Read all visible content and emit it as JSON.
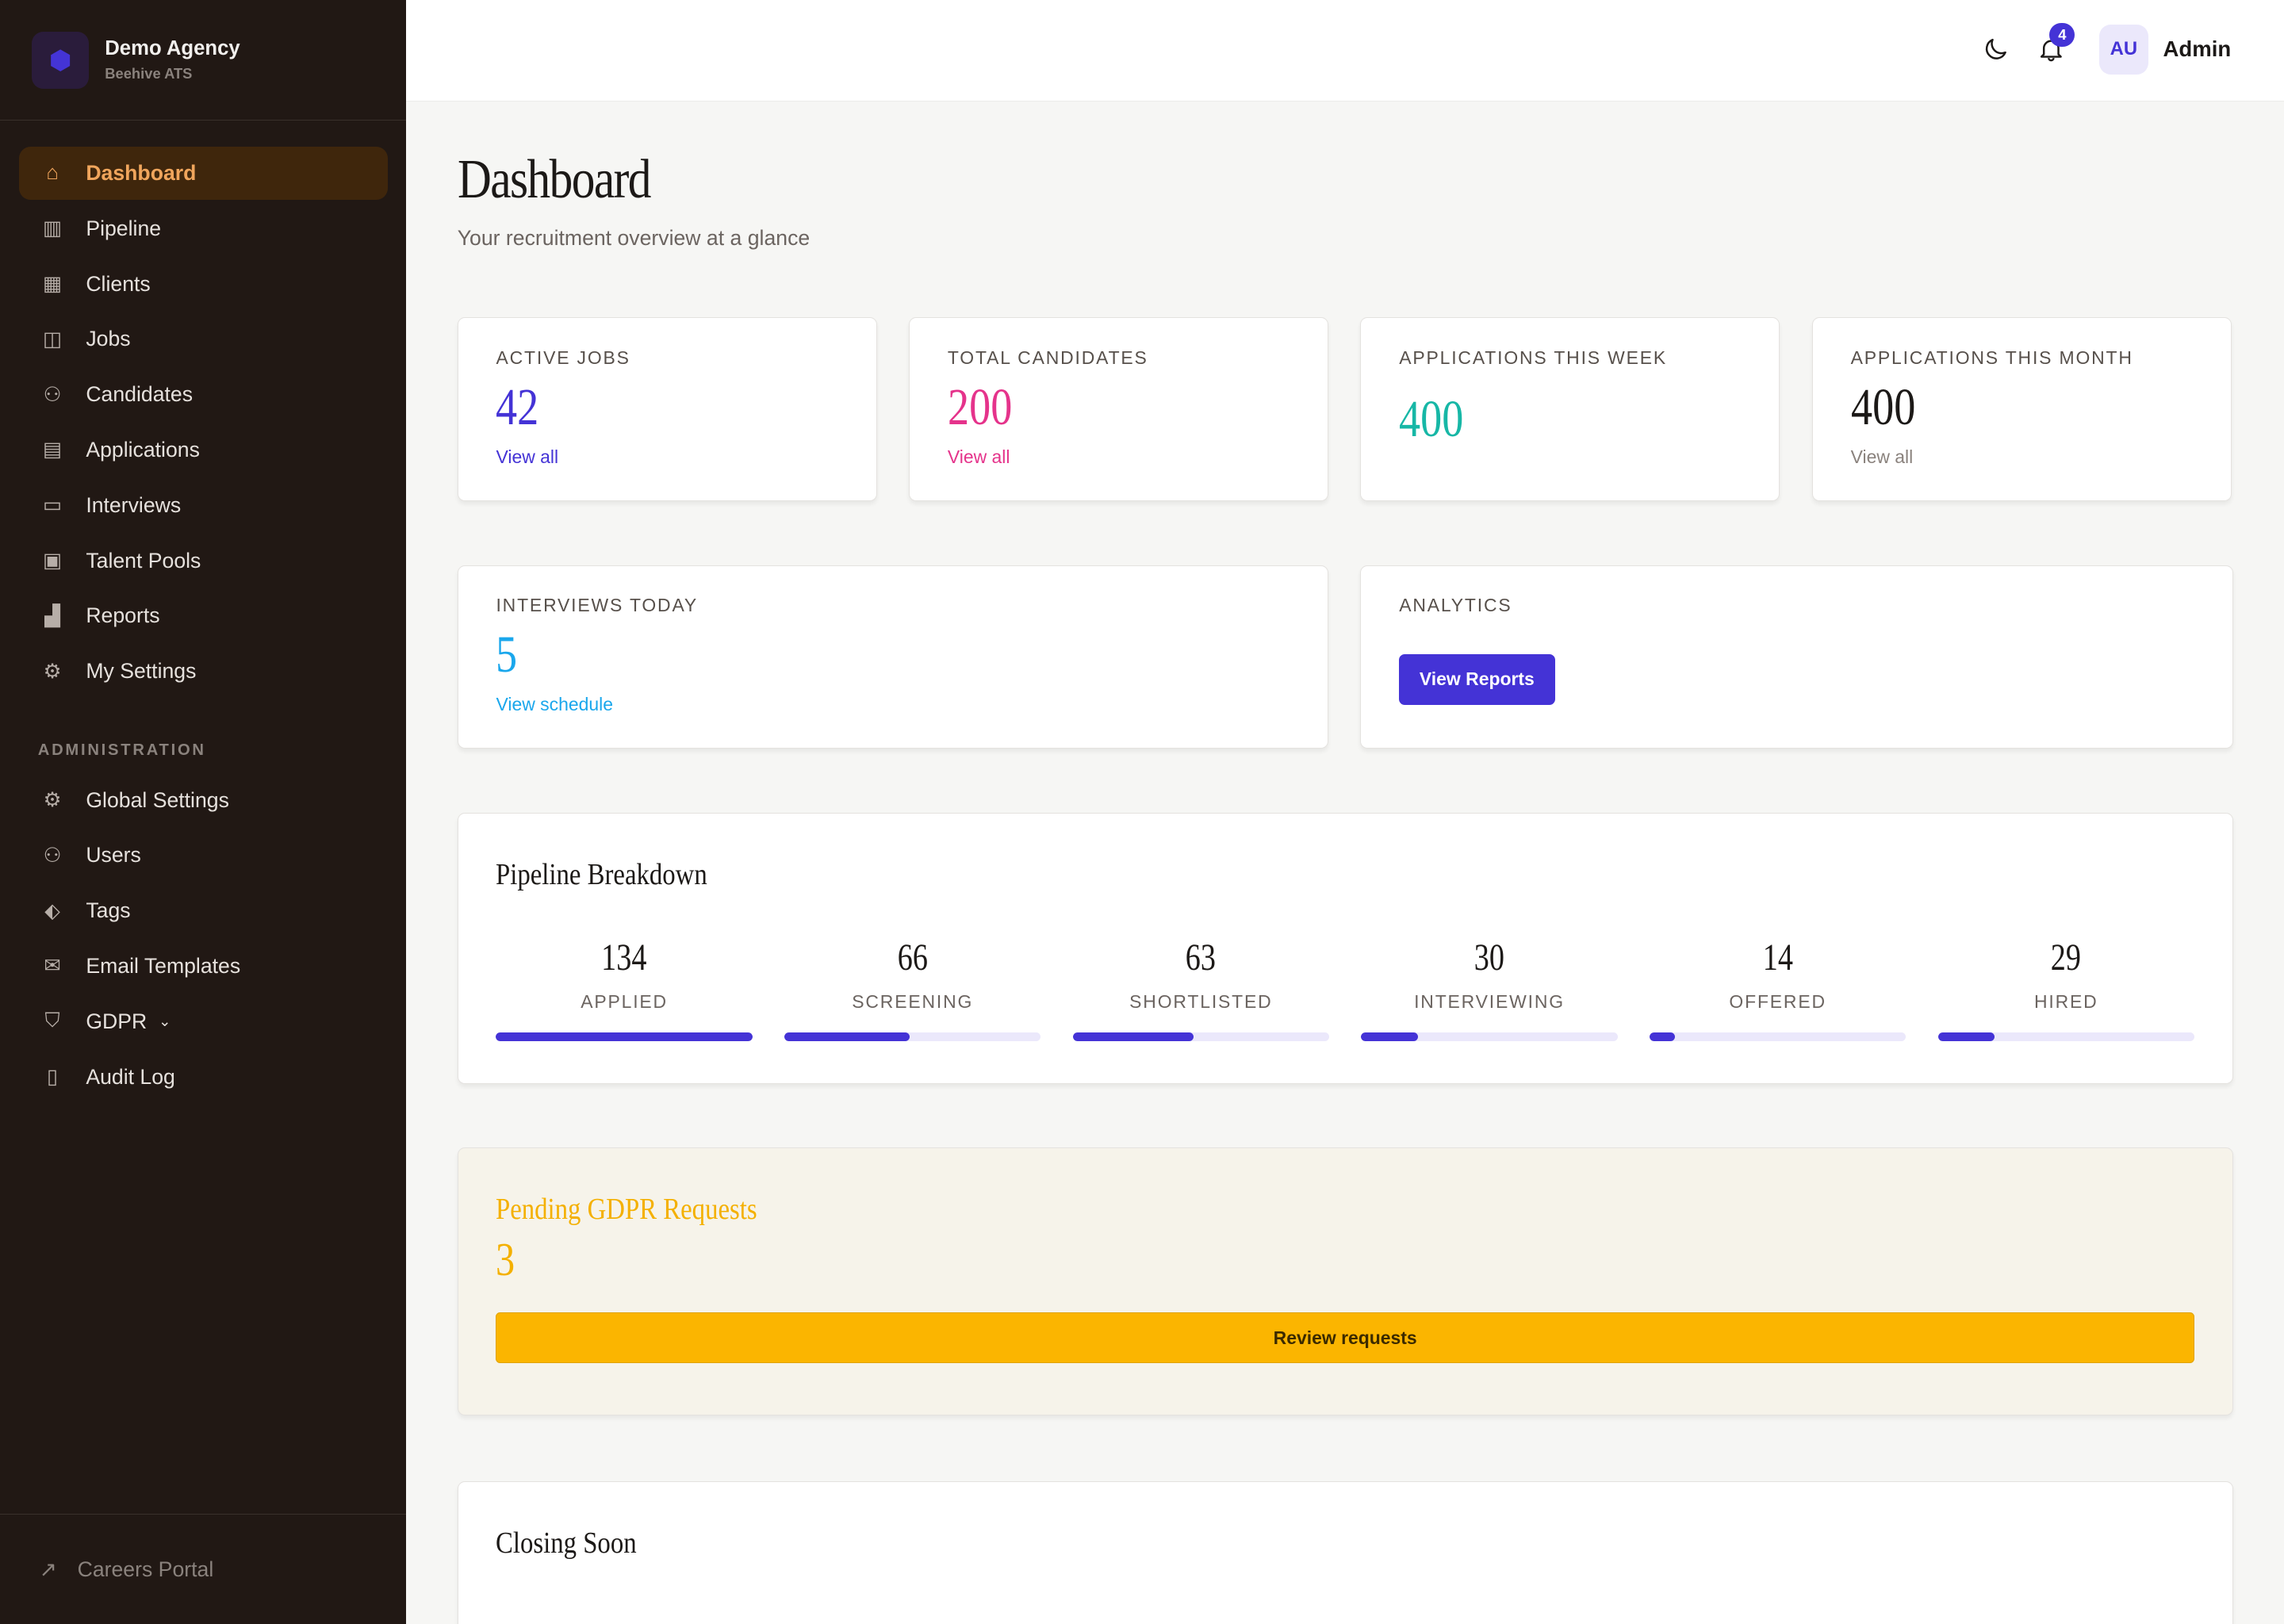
{
  "brand": {
    "name": "Demo Agency",
    "subtitle": "Beehive ATS"
  },
  "nav": [
    {
      "label": "Dashboard",
      "icon": "home-icon",
      "glyph": "⌂",
      "active": true
    },
    {
      "label": "Pipeline",
      "icon": "columns-icon",
      "glyph": "▥"
    },
    {
      "label": "Clients",
      "icon": "building-icon",
      "glyph": "▦"
    },
    {
      "label": "Jobs",
      "icon": "briefcase-icon",
      "glyph": "◫"
    },
    {
      "label": "Candidates",
      "icon": "users-icon",
      "glyph": "⚇"
    },
    {
      "label": "Applications",
      "icon": "document-icon",
      "glyph": "▤"
    },
    {
      "label": "Interviews",
      "icon": "calendar-icon",
      "glyph": "▭"
    },
    {
      "label": "Talent Pools",
      "icon": "archive-icon",
      "glyph": "▣"
    },
    {
      "label": "Reports",
      "icon": "bar-chart-icon",
      "glyph": "▟"
    },
    {
      "label": "My Settings",
      "icon": "gear-icon",
      "glyph": "⚙"
    }
  ],
  "admin_section": "ADMINISTRATION",
  "admin_nav": [
    {
      "label": "Global Settings",
      "icon": "gear-icon",
      "glyph": "⚙"
    },
    {
      "label": "Users",
      "icon": "users-icon",
      "glyph": "⚇"
    },
    {
      "label": "Tags",
      "icon": "tag-icon",
      "glyph": "⬖"
    },
    {
      "label": "Email Templates",
      "icon": "envelope-icon",
      "glyph": "✉"
    },
    {
      "label": "GDPR",
      "icon": "shield-icon",
      "glyph": "⛉"
    },
    {
      "label": "Audit Log",
      "icon": "file-icon",
      "glyph": "▯"
    }
  ],
  "footer": {
    "label": "Careers Portal"
  },
  "topbar": {
    "notifications": "4",
    "avatar": "AU",
    "user": "Admin"
  },
  "page": {
    "title": "Dashboard",
    "subtitle": "Your recruitment overview at a glance"
  },
  "stats": [
    {
      "label": "ACTIVE JOBS",
      "value": "42",
      "link": "View all",
      "color": "#4433d6"
    },
    {
      "label": "TOTAL CANDIDATES",
      "value": "200",
      "link": "View all",
      "color": "#e5338b"
    },
    {
      "label": "APPLICATIONS THIS WEEK",
      "value": "400",
      "color": "#17b7a6"
    },
    {
      "label": "APPLICATIONS THIS MONTH",
      "value": "400",
      "link": "View all",
      "color": "#1c1917"
    }
  ],
  "interviews": {
    "label": "INTERVIEWS TODAY",
    "value": "5",
    "link": "View schedule",
    "color": "#1aa7ec"
  },
  "analytics": {
    "label": "ANALYTICS",
    "button": "View Reports"
  },
  "pipeline": {
    "title": "Pipeline Breakdown",
    "stages": [
      {
        "count": "134",
        "label": "APPLIED",
        "fraction": 1.0
      },
      {
        "count": "66",
        "label": "SCREENING",
        "fraction": 0.49
      },
      {
        "count": "63",
        "label": "SHORTLISTED",
        "fraction": 0.47
      },
      {
        "count": "30",
        "label": "INTERVIEWING",
        "fraction": 0.22
      },
      {
        "count": "14",
        "label": "OFFERED",
        "fraction": 0.1
      },
      {
        "count": "29",
        "label": "HIRED",
        "fraction": 0.22
      }
    ]
  },
  "gdpr": {
    "title": "Pending GDPR Requests",
    "value": "3",
    "button": "Review requests",
    "color": "#f4b000"
  },
  "closing": {
    "title": "Closing Soon"
  }
}
